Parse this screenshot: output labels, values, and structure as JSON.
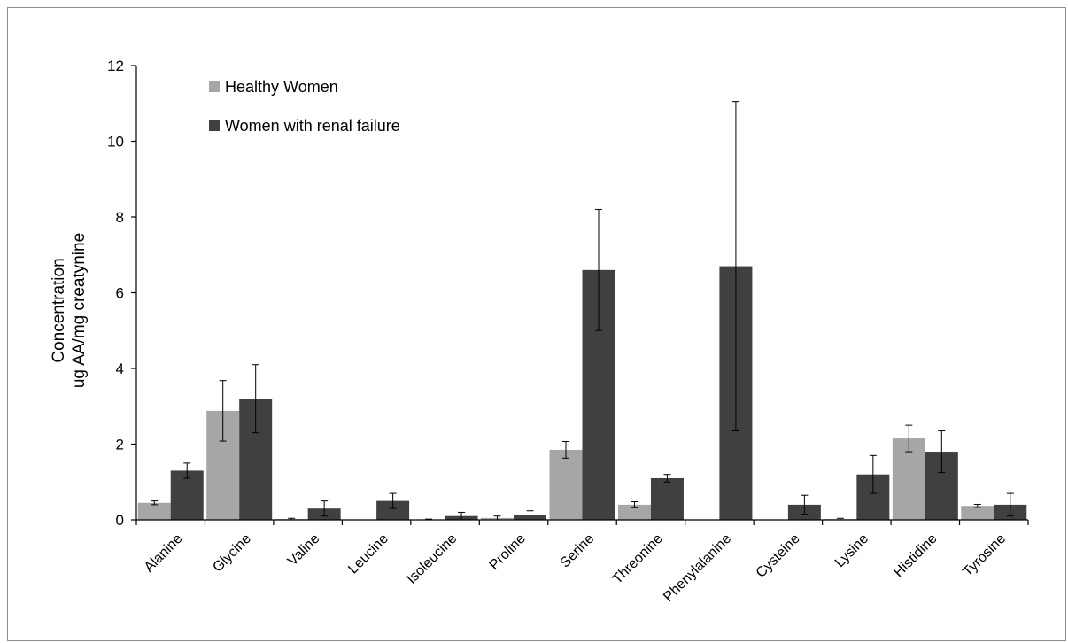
{
  "chart_data": {
    "type": "bar",
    "title": "",
    "xlabel": "",
    "ylabel": [
      "Concentration",
      "ug AA/mg creatynine"
    ],
    "ylim": [
      0,
      12
    ],
    "yticks": [
      0,
      2,
      4,
      6,
      8,
      10,
      12
    ],
    "categories": [
      "Alanine",
      "Glycine",
      "Valine",
      "Leucine",
      "Isoleucine",
      "Proline",
      "Serine",
      "Threonine",
      "Phenylalanine",
      "Cysteine",
      "Lysine",
      "Histidine",
      "Tyrosine"
    ],
    "grid": false,
    "legend_position": "top-left",
    "series": [
      {
        "name": "Healthy Women",
        "color": "#a6a6a6",
        "values": [
          0.45,
          2.88,
          0.02,
          0.0,
          0.01,
          0.05,
          1.85,
          0.4,
          0.0,
          0.0,
          0.02,
          2.15,
          0.37
        ],
        "errors": [
          0.05,
          0.8,
          0.02,
          0.0,
          0.01,
          0.05,
          0.22,
          0.08,
          0.0,
          0.0,
          0.02,
          0.35,
          0.04
        ]
      },
      {
        "name": "Women with renal failure",
        "color": "#404040",
        "values": [
          1.3,
          3.2,
          0.3,
          0.5,
          0.1,
          0.12,
          6.6,
          1.1,
          6.7,
          0.4,
          1.2,
          1.8,
          0.4
        ],
        "errors": [
          0.2,
          0.9,
          0.2,
          0.2,
          0.1,
          0.12,
          1.6,
          0.1,
          4.35,
          0.25,
          0.5,
          0.55,
          0.3
        ]
      }
    ]
  }
}
